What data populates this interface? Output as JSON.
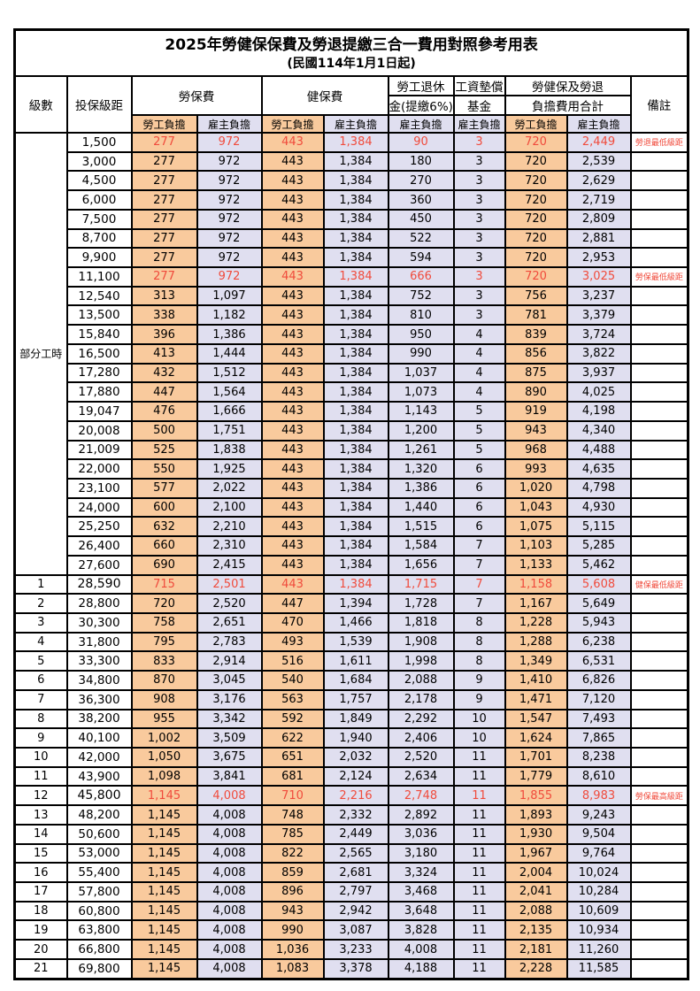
{
  "page": {
    "title": "2025年勞健保保費及勞退提繳三合一費用對照參考用表",
    "subtitle": "(民國114年1月1日起)"
  },
  "colors": {
    "employee_share_bg": "#F9CA9D",
    "employer_share_bg": "#E0DFF0",
    "highlight_text": "#F04B3C",
    "border": "#000000"
  },
  "table": {
    "columns": {
      "level": "級數",
      "bracket": "投保級距",
      "labor_insurance": "勞保費",
      "health_insurance": "健保費",
      "pension_top": "勞工退休",
      "pension_bottom": "金(提繳6%)",
      "wage_fund_top": "工資墊償",
      "wage_fund_bottom": "基金",
      "total_top": "勞健保及勞退",
      "total_bottom": "負擔費用合計",
      "remark": "備註",
      "employee_share": "勞工負擔",
      "employer_share": "雇主負擔"
    },
    "group_label": "部分工時",
    "group_rowspan": 23,
    "rows": [
      {
        "level": "",
        "bracket": "1,500",
        "v": [
          "277",
          "972",
          "443",
          "1,384",
          "90",
          "3",
          "720",
          "2,449"
        ],
        "remark": "勞退最低級距",
        "red": true,
        "bold": false
      },
      {
        "level": "",
        "bracket": "3,000",
        "v": [
          "277",
          "972",
          "443",
          "1,384",
          "180",
          "3",
          "720",
          "2,539"
        ],
        "remark": "",
        "red": false,
        "bold": false
      },
      {
        "level": "",
        "bracket": "4,500",
        "v": [
          "277",
          "972",
          "443",
          "1,384",
          "270",
          "3",
          "720",
          "2,629"
        ],
        "remark": "",
        "red": false,
        "bold": false
      },
      {
        "level": "",
        "bracket": "6,000",
        "v": [
          "277",
          "972",
          "443",
          "1,384",
          "360",
          "3",
          "720",
          "2,719"
        ],
        "remark": "",
        "red": false,
        "bold": false
      },
      {
        "level": "",
        "bracket": "7,500",
        "v": [
          "277",
          "972",
          "443",
          "1,384",
          "450",
          "3",
          "720",
          "2,809"
        ],
        "remark": "",
        "red": false,
        "bold": false
      },
      {
        "level": "",
        "bracket": "8,700",
        "v": [
          "277",
          "972",
          "443",
          "1,384",
          "522",
          "3",
          "720",
          "2,881"
        ],
        "remark": "",
        "red": false,
        "bold": false
      },
      {
        "level": "",
        "bracket": "9,900",
        "v": [
          "277",
          "972",
          "443",
          "1,384",
          "594",
          "3",
          "720",
          "2,953"
        ],
        "remark": "",
        "red": false,
        "bold": false
      },
      {
        "level": "",
        "bracket": "11,100",
        "v": [
          "277",
          "972",
          "443",
          "1,384",
          "666",
          "3",
          "720",
          "3,025"
        ],
        "remark": "勞保最低級距",
        "red": true,
        "bold": false
      },
      {
        "level": "",
        "bracket": "12,540",
        "v": [
          "313",
          "1,097",
          "443",
          "1,384",
          "752",
          "3",
          "756",
          "3,237"
        ],
        "remark": "",
        "red": false,
        "bold": false
      },
      {
        "level": "",
        "bracket": "13,500",
        "v": [
          "338",
          "1,182",
          "443",
          "1,384",
          "810",
          "3",
          "781",
          "3,379"
        ],
        "remark": "",
        "red": false,
        "bold": false
      },
      {
        "level": "",
        "bracket": "15,840",
        "v": [
          "396",
          "1,386",
          "443",
          "1,384",
          "950",
          "4",
          "839",
          "3,724"
        ],
        "remark": "",
        "red": false,
        "bold": false
      },
      {
        "level": "",
        "bracket": "16,500",
        "v": [
          "413",
          "1,444",
          "443",
          "1,384",
          "990",
          "4",
          "856",
          "3,822"
        ],
        "remark": "",
        "red": false,
        "bold": false
      },
      {
        "level": "",
        "bracket": "17,280",
        "v": [
          "432",
          "1,512",
          "443",
          "1,384",
          "1,037",
          "4",
          "875",
          "3,937"
        ],
        "remark": "",
        "red": false,
        "bold": false
      },
      {
        "level": "",
        "bracket": "17,880",
        "v": [
          "447",
          "1,564",
          "443",
          "1,384",
          "1,073",
          "4",
          "890",
          "4,025"
        ],
        "remark": "",
        "red": false,
        "bold": false
      },
      {
        "level": "",
        "bracket": "19,047",
        "v": [
          "476",
          "1,666",
          "443",
          "1,384",
          "1,143",
          "5",
          "919",
          "4,198"
        ],
        "remark": "",
        "red": false,
        "bold": false
      },
      {
        "level": "",
        "bracket": "20,008",
        "v": [
          "500",
          "1,751",
          "443",
          "1,384",
          "1,200",
          "5",
          "943",
          "4,340"
        ],
        "remark": "",
        "red": false,
        "bold": false
      },
      {
        "level": "",
        "bracket": "21,009",
        "v": [
          "525",
          "1,838",
          "443",
          "1,384",
          "1,261",
          "5",
          "968",
          "4,488"
        ],
        "remark": "",
        "red": false,
        "bold": false
      },
      {
        "level": "",
        "bracket": "22,000",
        "v": [
          "550",
          "1,925",
          "443",
          "1,384",
          "1,320",
          "6",
          "993",
          "4,635"
        ],
        "remark": "",
        "red": false,
        "bold": false
      },
      {
        "level": "",
        "bracket": "23,100",
        "v": [
          "577",
          "2,022",
          "443",
          "1,384",
          "1,386",
          "6",
          "1,020",
          "4,798"
        ],
        "remark": "",
        "red": false,
        "bold": false
      },
      {
        "level": "",
        "bracket": "24,000",
        "v": [
          "600",
          "2,100",
          "443",
          "1,384",
          "1,440",
          "6",
          "1,043",
          "4,930"
        ],
        "remark": "",
        "red": false,
        "bold": false
      },
      {
        "level": "",
        "bracket": "25,250",
        "v": [
          "632",
          "2,210",
          "443",
          "1,384",
          "1,515",
          "6",
          "1,075",
          "5,115"
        ],
        "remark": "",
        "red": false,
        "bold": false
      },
      {
        "level": "",
        "bracket": "26,400",
        "v": [
          "660",
          "2,310",
          "443",
          "1,384",
          "1,584",
          "7",
          "1,103",
          "5,285"
        ],
        "remark": "",
        "red": false,
        "bold": false
      },
      {
        "level": "",
        "bracket": "27,600",
        "v": [
          "690",
          "2,415",
          "443",
          "1,384",
          "1,656",
          "7",
          "1,133",
          "5,462"
        ],
        "remark": "",
        "red": false,
        "bold": false
      },
      {
        "level": "1",
        "bracket": "28,590",
        "v": [
          "715",
          "2,501",
          "443",
          "1,384",
          "1,715",
          "7",
          "1,158",
          "5,608"
        ],
        "remark": "健保最低級距",
        "red": true,
        "bold": true
      },
      {
        "level": "2",
        "bracket": "28,800",
        "v": [
          "720",
          "2,520",
          "447",
          "1,394",
          "1,728",
          "7",
          "1,167",
          "5,649"
        ],
        "remark": "",
        "red": false,
        "bold": false
      },
      {
        "level": "3",
        "bracket": "30,300",
        "v": [
          "758",
          "2,651",
          "470",
          "1,466",
          "1,818",
          "8",
          "1,228",
          "5,943"
        ],
        "remark": "",
        "red": false,
        "bold": false
      },
      {
        "level": "4",
        "bracket": "31,800",
        "v": [
          "795",
          "2,783",
          "493",
          "1,539",
          "1,908",
          "8",
          "1,288",
          "6,238"
        ],
        "remark": "",
        "red": false,
        "bold": false
      },
      {
        "level": "5",
        "bracket": "33,300",
        "v": [
          "833",
          "2,914",
          "516",
          "1,611",
          "1,998",
          "8",
          "1,349",
          "6,531"
        ],
        "remark": "",
        "red": false,
        "bold": false
      },
      {
        "level": "6",
        "bracket": "34,800",
        "v": [
          "870",
          "3,045",
          "540",
          "1,684",
          "2,088",
          "9",
          "1,410",
          "6,826"
        ],
        "remark": "",
        "red": false,
        "bold": false
      },
      {
        "level": "7",
        "bracket": "36,300",
        "v": [
          "908",
          "3,176",
          "563",
          "1,757",
          "2,178",
          "9",
          "1,471",
          "7,120"
        ],
        "remark": "",
        "red": false,
        "bold": false
      },
      {
        "level": "8",
        "bracket": "38,200",
        "v": [
          "955",
          "3,342",
          "592",
          "1,849",
          "2,292",
          "10",
          "1,547",
          "7,493"
        ],
        "remark": "",
        "red": false,
        "bold": false
      },
      {
        "level": "9",
        "bracket": "40,100",
        "v": [
          "1,002",
          "3,509",
          "622",
          "1,940",
          "2,406",
          "10",
          "1,624",
          "7,865"
        ],
        "remark": "",
        "red": false,
        "bold": false
      },
      {
        "level": "10",
        "bracket": "42,000",
        "v": [
          "1,050",
          "3,675",
          "651",
          "2,032",
          "2,520",
          "11",
          "1,701",
          "8,238"
        ],
        "remark": "",
        "red": false,
        "bold": false
      },
      {
        "level": "11",
        "bracket": "43,900",
        "v": [
          "1,098",
          "3,841",
          "681",
          "2,124",
          "2,634",
          "11",
          "1,779",
          "8,610"
        ],
        "remark": "",
        "red": false,
        "bold": false
      },
      {
        "level": "12",
        "bracket": "45,800",
        "v": [
          "1,145",
          "4,008",
          "710",
          "2,216",
          "2,748",
          "11",
          "1,855",
          "8,983"
        ],
        "remark": "勞保最高級距",
        "red": true,
        "bold": true
      },
      {
        "level": "13",
        "bracket": "48,200",
        "v": [
          "1,145",
          "4,008",
          "748",
          "2,332",
          "2,892",
          "11",
          "1,893",
          "9,243"
        ],
        "remark": "",
        "red": false,
        "bold": false
      },
      {
        "level": "14",
        "bracket": "50,600",
        "v": [
          "1,145",
          "4,008",
          "785",
          "2,449",
          "3,036",
          "11",
          "1,930",
          "9,504"
        ],
        "remark": "",
        "red": false,
        "bold": false
      },
      {
        "level": "15",
        "bracket": "53,000",
        "v": [
          "1,145",
          "4,008",
          "822",
          "2,565",
          "3,180",
          "11",
          "1,967",
          "9,764"
        ],
        "remark": "",
        "red": false,
        "bold": false
      },
      {
        "level": "16",
        "bracket": "55,400",
        "v": [
          "1,145",
          "4,008",
          "859",
          "2,681",
          "3,324",
          "11",
          "2,004",
          "10,024"
        ],
        "remark": "",
        "red": false,
        "bold": false
      },
      {
        "level": "17",
        "bracket": "57,800",
        "v": [
          "1,145",
          "4,008",
          "896",
          "2,797",
          "3,468",
          "11",
          "2,041",
          "10,284"
        ],
        "remark": "",
        "red": false,
        "bold": false
      },
      {
        "level": "18",
        "bracket": "60,800",
        "v": [
          "1,145",
          "4,008",
          "943",
          "2,942",
          "3,648",
          "11",
          "2,088",
          "10,609"
        ],
        "remark": "",
        "red": false,
        "bold": false
      },
      {
        "level": "19",
        "bracket": "63,800",
        "v": [
          "1,145",
          "4,008",
          "990",
          "3,087",
          "3,828",
          "11",
          "2,135",
          "10,934"
        ],
        "remark": "",
        "red": false,
        "bold": false
      },
      {
        "level": "20",
        "bracket": "66,800",
        "v": [
          "1,145",
          "4,008",
          "1,036",
          "3,233",
          "4,008",
          "11",
          "2,181",
          "11,260"
        ],
        "remark": "",
        "red": false,
        "bold": false
      },
      {
        "level": "21",
        "bracket": "69,800",
        "v": [
          "1,145",
          "4,008",
          "1,083",
          "3,378",
          "4,188",
          "11",
          "2,228",
          "11,585"
        ],
        "remark": "",
        "red": false,
        "bold": false
      }
    ]
  }
}
